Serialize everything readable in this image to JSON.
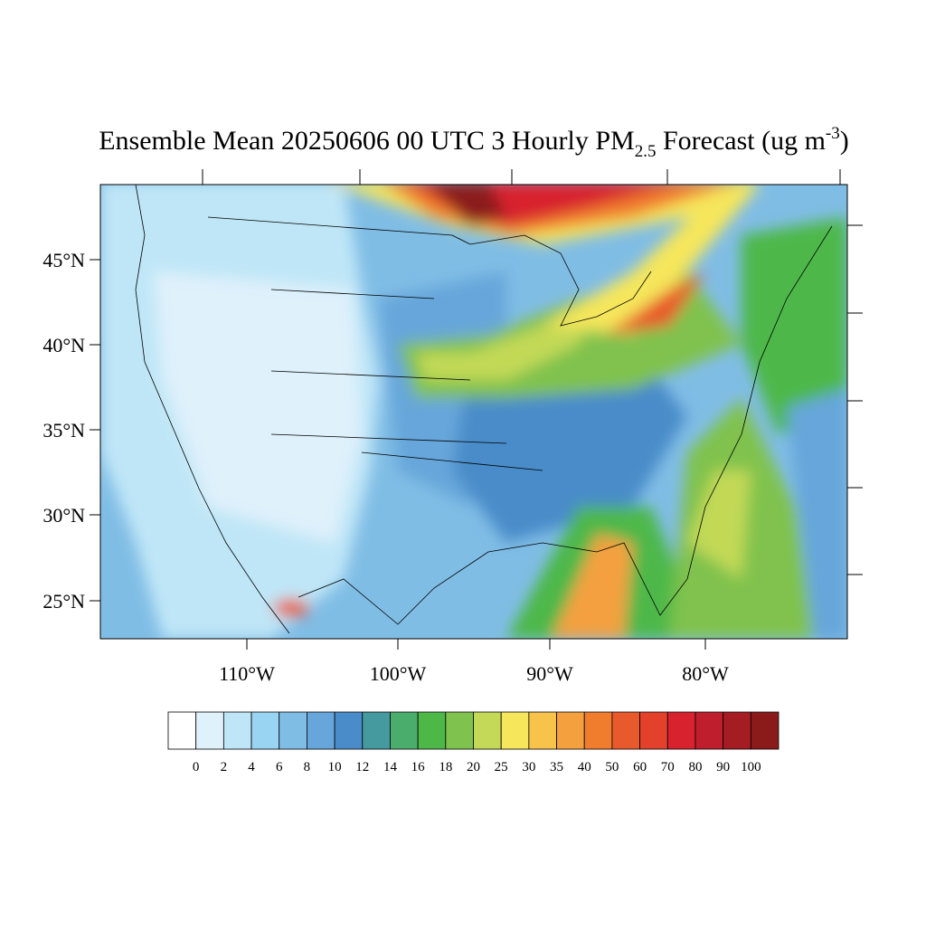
{
  "title": {
    "main": "Ensemble Mean 20250606 00 UTC 3 Hourly PM",
    "subscript": "2.5",
    "middle": " Forecast (ug m",
    "superscript": "-3",
    "end": ")"
  },
  "lat_labels": [
    "45°N",
    "40°N",
    "35°N",
    "30°N",
    "25°N"
  ],
  "lon_labels": [
    "110°W",
    "100°W",
    "90°W",
    "80°W"
  ],
  "colorbar": {
    "levels": [
      0,
      2,
      4,
      6,
      8,
      10,
      12,
      14,
      16,
      18,
      20,
      25,
      30,
      35,
      40,
      50,
      60,
      70,
      80,
      90,
      100
    ],
    "colors": [
      "#ffffff",
      "#dff1fb",
      "#bfe6f7",
      "#99d5f2",
      "#80bde5",
      "#66a6da",
      "#4a8cc9",
      "#449a9e",
      "#4aad6c",
      "#4db848",
      "#80c24e",
      "#c3d957",
      "#f5e65c",
      "#f7c34b",
      "#f4a03f",
      "#f07d2e",
      "#e85a2c",
      "#e3412c",
      "#d8222d",
      "#bf1e2d",
      "#a51c23",
      "#8b1a1a"
    ]
  }
}
